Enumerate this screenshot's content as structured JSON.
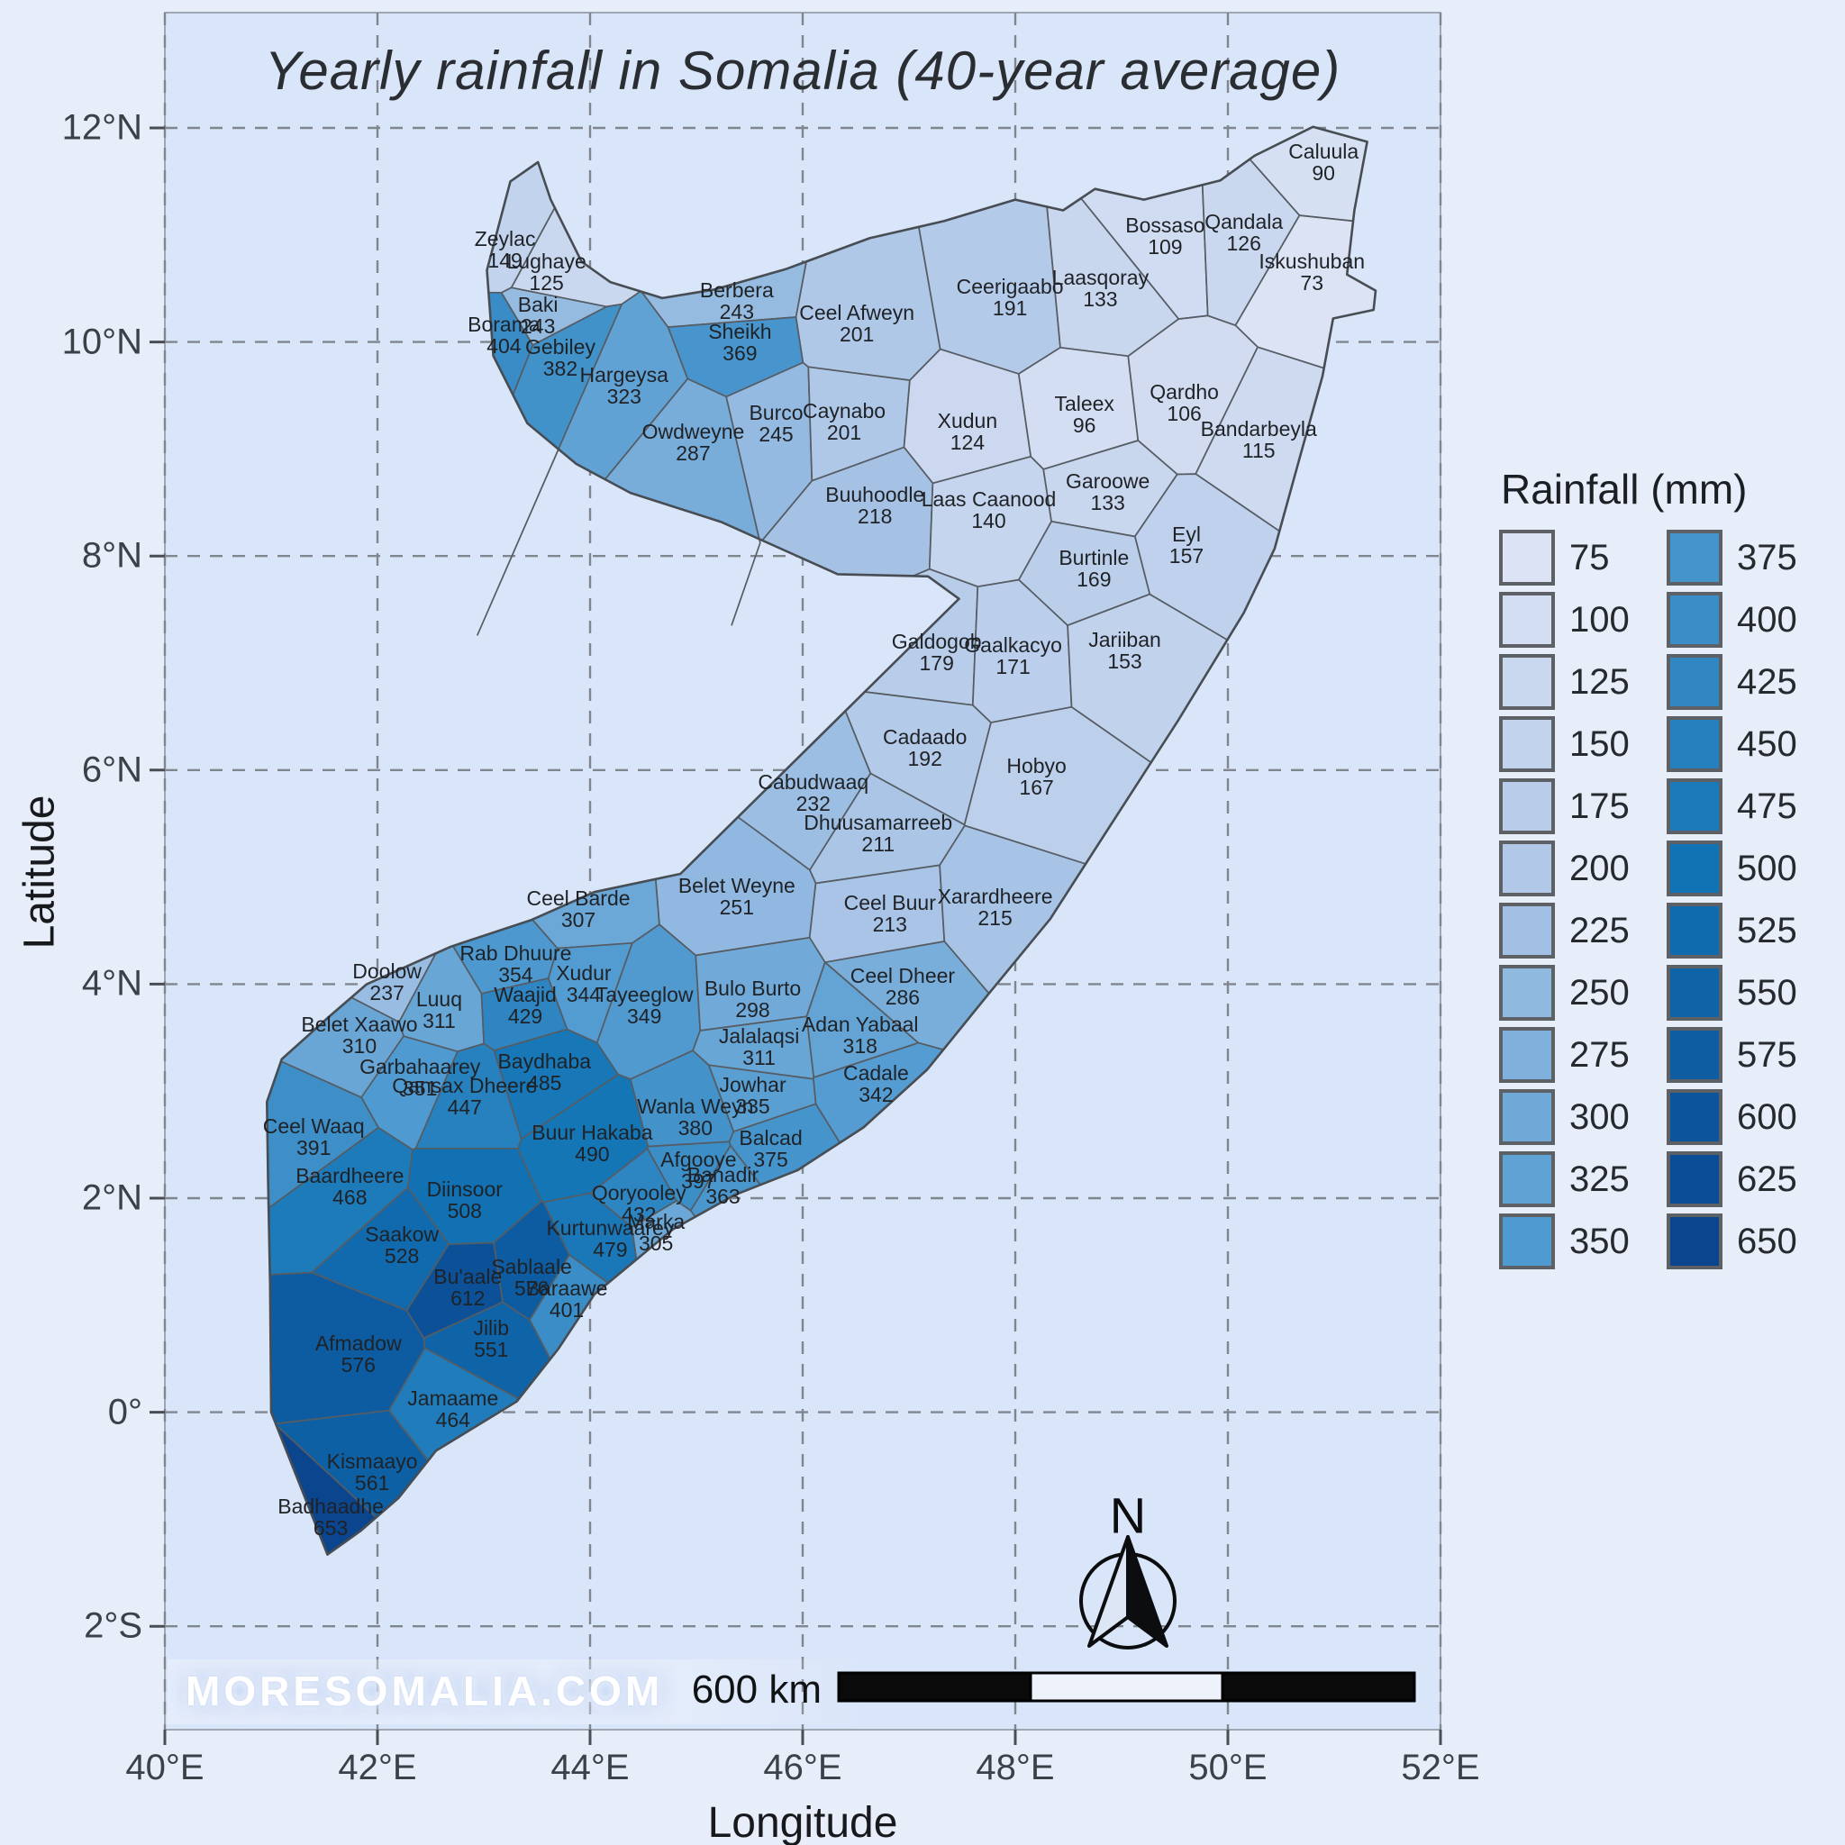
{
  "title": "Yearly rainfall in Somalia (40-year average)",
  "axes": {
    "x_label": "Longitude",
    "y_label": "Latitude",
    "x_ticks": [
      {
        "label": "40°E",
        "lon": 40
      },
      {
        "label": "42°E",
        "lon": 42
      },
      {
        "label": "44°E",
        "lon": 44
      },
      {
        "label": "46°E",
        "lon": 46
      },
      {
        "label": "48°E",
        "lon": 48
      },
      {
        "label": "50°E",
        "lon": 50
      },
      {
        "label": "52°E",
        "lon": 52
      }
    ],
    "y_ticks": [
      {
        "label": "12°N",
        "lat": 12
      },
      {
        "label": "10°N",
        "lat": 10
      },
      {
        "label": "8°N",
        "lat": 8
      },
      {
        "label": "6°N",
        "lat": 6
      },
      {
        "label": "4°N",
        "lat": 4
      },
      {
        "label": "2°N",
        "lat": 2
      },
      {
        "label": "0°",
        "lat": 0
      },
      {
        "label": "2°S",
        "lat": -2
      }
    ]
  },
  "legend": {
    "title": "Rainfall (mm)",
    "breaks_left": [
      75,
      100,
      125,
      150,
      175,
      200,
      225,
      250,
      275,
      300,
      325,
      350
    ],
    "breaks_right": [
      375,
      400,
      425,
      450,
      475,
      500,
      525,
      550,
      575,
      600,
      625,
      650
    ]
  },
  "annotations": {
    "watermark": "MORESOMALIA.COM",
    "scale_label": "600 km",
    "north_label": "N"
  },
  "colors": {
    "figure_bg": "#e8edfa",
    "ocean": "#d9e5f9",
    "gridline": "#80868f",
    "district_border": "#565c63",
    "coast_border": "#474d53"
  },
  "chart_data": {
    "type": "choropleth_map",
    "region": "Somalia",
    "unit": "mm",
    "value_range": [
      73,
      653
    ],
    "color_scale": {
      "stops": [
        [
          75,
          "#dbe3f4"
        ],
        [
          200,
          "#b1c8e8"
        ],
        [
          350,
          "#4f9ad0"
        ],
        [
          500,
          "#1173b4"
        ],
        [
          650,
          "#0a458e"
        ]
      ]
    },
    "outline": [
      [
        43.25,
        11.5
      ],
      [
        43.51,
        11.68
      ],
      [
        43.63,
        11.33
      ],
      [
        43.92,
        10.75
      ],
      [
        44.19,
        10.56
      ],
      [
        44.68,
        10.41
      ],
      [
        45.17,
        10.49
      ],
      [
        45.84,
        10.68
      ],
      [
        46.63,
        10.97
      ],
      [
        47.33,
        11.13
      ],
      [
        48.0,
        11.33
      ],
      [
        48.45,
        11.23
      ],
      [
        48.75,
        11.43
      ],
      [
        49.21,
        11.33
      ],
      [
        49.93,
        11.51
      ],
      [
        50.25,
        11.74
      ],
      [
        50.8,
        12.01
      ],
      [
        51.31,
        11.87
      ],
      [
        51.19,
        11.23
      ],
      [
        51.12,
        10.63
      ],
      [
        51.39,
        10.48
      ],
      [
        51.37,
        10.3
      ],
      [
        50.99,
        10.22
      ],
      [
        50.89,
        9.68
      ],
      [
        50.69,
        8.97
      ],
      [
        50.44,
        8.07
      ],
      [
        50.15,
        7.47
      ],
      [
        49.53,
        6.46
      ],
      [
        48.88,
        5.46
      ],
      [
        48.33,
        4.61
      ],
      [
        47.75,
        3.91
      ],
      [
        47.17,
        3.2
      ],
      [
        46.57,
        2.66
      ],
      [
        45.95,
        2.26
      ],
      [
        45.36,
        2.03
      ],
      [
        44.78,
        1.71
      ],
      [
        44.04,
        1.1
      ],
      [
        43.7,
        0.59
      ],
      [
        43.31,
        0.1
      ],
      [
        42.55,
        -0.36
      ],
      [
        42.2,
        -0.8
      ],
      [
        41.84,
        -1.11
      ],
      [
        41.53,
        -1.33
      ],
      [
        41.0,
        0.0
      ],
      [
        40.99,
        1.2
      ],
      [
        40.97,
        2.2
      ],
      [
        40.96,
        2.9
      ],
      [
        41.1,
        3.3
      ],
      [
        41.55,
        3.7
      ],
      [
        41.9,
        4.0
      ],
      [
        42.69,
        4.35
      ],
      [
        43.45,
        4.6
      ],
      [
        44.04,
        4.86
      ],
      [
        44.85,
        5.03
      ],
      [
        47.47,
        7.6
      ],
      [
        47.18,
        7.81
      ],
      [
        46.33,
        7.83
      ],
      [
        45.23,
        8.32
      ],
      [
        44.38,
        8.59
      ],
      [
        43.87,
        8.86
      ],
      [
        43.41,
        9.24
      ],
      [
        43.09,
        9.87
      ],
      [
        43.03,
        10.67
      ]
    ],
    "districts": [
      {
        "name": "Zeylac",
        "value": 149,
        "lon": 43.2,
        "lat": 10.86
      },
      {
        "name": "Lughaye",
        "value": 125,
        "lon": 43.59,
        "lat": 10.65
      },
      {
        "name": "Baki",
        "value": 243,
        "lon": 43.51,
        "lat": 10.25
      },
      {
        "name": "Borama",
        "value": 404,
        "lon": 43.19,
        "lat": 10.06
      },
      {
        "name": "Gebiley",
        "value": 382,
        "lon": 43.72,
        "lat": 9.85
      },
      {
        "name": "Hargeysa",
        "value": 323,
        "lon": 44.32,
        "lat": 9.59
      },
      {
        "name": "Berbera",
        "value": 243,
        "lon": 45.38,
        "lat": 10.38
      },
      {
        "name": "Sheikh",
        "value": 369,
        "lon": 45.41,
        "lat": 10.0
      },
      {
        "name": "Owdweyne",
        "value": 287,
        "lon": 44.97,
        "lat": 9.06
      },
      {
        "name": "Burco",
        "value": 245,
        "lon": 45.75,
        "lat": 9.24
      },
      {
        "name": "Ceel Afweyn",
        "value": 201,
        "lon": 46.51,
        "lat": 10.17
      },
      {
        "name": "Ceerigaabo",
        "value": 191,
        "lon": 47.95,
        "lat": 10.42
      },
      {
        "name": "Laasqoray",
        "value": 133,
        "lon": 48.8,
        "lat": 10.5
      },
      {
        "name": "Bossaso",
        "value": 109,
        "lon": 49.41,
        "lat": 10.99
      },
      {
        "name": "Qandala",
        "value": 126,
        "lon": 50.15,
        "lat": 11.02
      },
      {
        "name": "Caluula",
        "value": 90,
        "lon": 50.9,
        "lat": 11.68
      },
      {
        "name": "Iskushuban",
        "value": 73,
        "lon": 50.79,
        "lat": 10.65
      },
      {
        "name": "Caynabo",
        "value": 201,
        "lon": 46.39,
        "lat": 9.26
      },
      {
        "name": "Xudun",
        "value": 124,
        "lon": 47.55,
        "lat": 9.16
      },
      {
        "name": "Taleex",
        "value": 96,
        "lon": 48.65,
        "lat": 9.32
      },
      {
        "name": "Qardho",
        "value": 106,
        "lon": 49.59,
        "lat": 9.43
      },
      {
        "name": "Bandarbeyla",
        "value": 115,
        "lon": 50.29,
        "lat": 9.09
      },
      {
        "name": "Buuhoodle",
        "value": 218,
        "lon": 46.68,
        "lat": 8.47
      },
      {
        "name": "Laas Caanood",
        "value": 140,
        "lon": 47.75,
        "lat": 8.43
      },
      {
        "name": "Garoowe",
        "value": 133,
        "lon": 48.87,
        "lat": 8.6
      },
      {
        "name": "Eyl",
        "value": 157,
        "lon": 49.61,
        "lat": 8.1
      },
      {
        "name": "Burtinle",
        "value": 169,
        "lon": 48.74,
        "lat": 7.88
      },
      {
        "name": "Galdogob",
        "value": 179,
        "lon": 47.26,
        "lat": 7.1
      },
      {
        "name": "Gaalkacyo",
        "value": 171,
        "lon": 47.98,
        "lat": 7.07
      },
      {
        "name": "Jariiban",
        "value": 153,
        "lon": 49.03,
        "lat": 7.12
      },
      {
        "name": "Cadaado",
        "value": 192,
        "lon": 47.15,
        "lat": 6.21
      },
      {
        "name": "Hobyo",
        "value": 167,
        "lon": 48.2,
        "lat": 5.94
      },
      {
        "name": "Cabudwaaq",
        "value": 232,
        "lon": 46.1,
        "lat": 5.79
      },
      {
        "name": "Dhuusamarreeb",
        "value": 211,
        "lon": 46.71,
        "lat": 5.41
      },
      {
        "name": "Belet Weyne",
        "value": 251,
        "lon": 45.38,
        "lat": 4.82
      },
      {
        "name": "Ceel Buur",
        "value": 213,
        "lon": 46.82,
        "lat": 4.66
      },
      {
        "name": "Xarardheere",
        "value": 215,
        "lon": 47.81,
        "lat": 4.72
      },
      {
        "name": "Ceel Barde",
        "value": 307,
        "lon": 43.89,
        "lat": 4.7
      },
      {
        "name": "Rab Dhuure",
        "value": 354,
        "lon": 43.3,
        "lat": 4.19
      },
      {
        "name": "Doolow",
        "value": 237,
        "lon": 42.09,
        "lat": 4.02
      },
      {
        "name": "Luuq",
        "value": 311,
        "lon": 42.58,
        "lat": 3.76
      },
      {
        "name": "Xudur",
        "value": 344,
        "lon": 43.94,
        "lat": 4.0
      },
      {
        "name": "Waajid",
        "value": 429,
        "lon": 43.39,
        "lat": 3.8
      },
      {
        "name": "Tayeeglow",
        "value": 349,
        "lon": 44.51,
        "lat": 3.8
      },
      {
        "name": "Belet Xaawo",
        "value": 310,
        "lon": 41.83,
        "lat": 3.52
      },
      {
        "name": "Garbahaarey",
        "value": 351,
        "lon": 42.4,
        "lat": 3.13
      },
      {
        "name": "Qansax Dheere",
        "value": 447,
        "lon": 42.82,
        "lat": 2.95
      },
      {
        "name": "Baydhaba",
        "value": 485,
        "lon": 43.57,
        "lat": 3.18
      },
      {
        "name": "Bulo Burto",
        "value": 298,
        "lon": 45.53,
        "lat": 3.86
      },
      {
        "name": "Jalalaqsi",
        "value": 311,
        "lon": 45.59,
        "lat": 3.41
      },
      {
        "name": "Adan Yabaal",
        "value": 318,
        "lon": 46.54,
        "lat": 3.52
      },
      {
        "name": "Ceel Dheer",
        "value": 286,
        "lon": 46.94,
        "lat": 3.98
      },
      {
        "name": "Cadale",
        "value": 342,
        "lon": 46.69,
        "lat": 3.07
      },
      {
        "name": "Jowhar",
        "value": 335,
        "lon": 45.53,
        "lat": 2.96
      },
      {
        "name": "Ceel Waaq",
        "value": 391,
        "lon": 41.4,
        "lat": 2.57
      },
      {
        "name": "Baardheere",
        "value": 468,
        "lon": 41.74,
        "lat": 2.11
      },
      {
        "name": "Diinsoor",
        "value": 508,
        "lon": 42.82,
        "lat": 1.98
      },
      {
        "name": "Buur Hakaba",
        "value": 490,
        "lon": 44.02,
        "lat": 2.51
      },
      {
        "name": "Wanla Weyn",
        "value": 380,
        "lon": 44.99,
        "lat": 2.76
      },
      {
        "name": "Balcad",
        "value": 375,
        "lon": 45.7,
        "lat": 2.46
      },
      {
        "name": "Afgooye",
        "value": 397,
        "lon": 45.02,
        "lat": 2.26
      },
      {
        "name": "Banadir",
        "value": 363,
        "lon": 45.25,
        "lat": 2.12
      },
      {
        "name": "Qoryooley",
        "value": 432,
        "lon": 44.46,
        "lat": 1.95
      },
      {
        "name": "Kurtunwaarey",
        "value": 479,
        "lon": 44.19,
        "lat": 1.62
      },
      {
        "name": "Marka",
        "value": 305,
        "lon": 44.62,
        "lat": 1.68
      },
      {
        "name": "Sablaale",
        "value": 576,
        "lon": 43.45,
        "lat": 1.26
      },
      {
        "name": "Baraawe",
        "value": 401,
        "lon": 43.78,
        "lat": 1.06
      },
      {
        "name": "Saakow",
        "value": 528,
        "lon": 42.23,
        "lat": 1.56
      },
      {
        "name": "Bu'aale",
        "value": 612,
        "lon": 42.85,
        "lat": 1.17
      },
      {
        "name": "Jilib",
        "value": 551,
        "lon": 43.07,
        "lat": 0.69
      },
      {
        "name": "Afmadow",
        "value": 576,
        "lon": 41.82,
        "lat": 0.54
      },
      {
        "name": "Jamaame",
        "value": 464,
        "lon": 42.71,
        "lat": 0.03
      },
      {
        "name": "Kismaayo",
        "value": 561,
        "lon": 41.95,
        "lat": -0.56
      },
      {
        "name": "Badhaadhe",
        "value": 653,
        "lon": 41.56,
        "lat": -0.98
      }
    ]
  }
}
